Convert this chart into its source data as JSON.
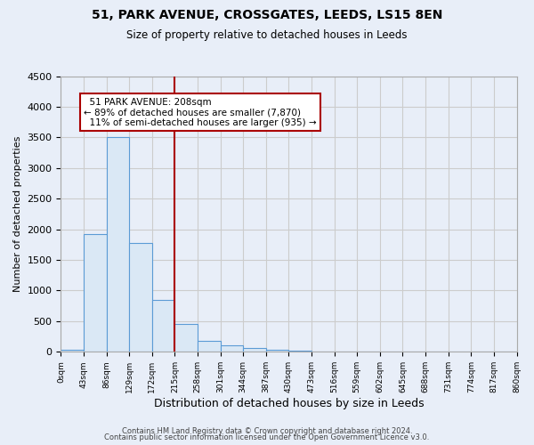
{
  "title": "51, PARK AVENUE, CROSSGATES, LEEDS, LS15 8EN",
  "subtitle": "Size of property relative to detached houses in Leeds",
  "xlabel": "Distribution of detached houses by size in Leeds",
  "ylabel": "Number of detached properties",
  "property_label": "51 PARK AVENUE: 208sqm",
  "pct_smaller": 89,
  "pct_smaller_count": 7870,
  "pct_larger": 11,
  "pct_larger_count": 935,
  "bin_edges": [
    0,
    43,
    86,
    129,
    172,
    215,
    258,
    301,
    344,
    387,
    430,
    473,
    516,
    559,
    602,
    645,
    688,
    731,
    774,
    817,
    860
  ],
  "bin_counts": [
    40,
    1920,
    3500,
    1780,
    850,
    460,
    175,
    110,
    60,
    40,
    15,
    10,
    0,
    0,
    0,
    0,
    0,
    0,
    0,
    0
  ],
  "bar_facecolor": "#dae8f5",
  "bar_edgecolor": "#5b9bd5",
  "redline_x": 215,
  "annotation_box_edgecolor": "#aa0000",
  "annotation_box_facecolor": "#ffffff",
  "redline_color": "#aa0000",
  "ylim": [
    0,
    4500
  ],
  "yticks": [
    0,
    500,
    1000,
    1500,
    2000,
    2500,
    3000,
    3500,
    4000,
    4500
  ],
  "footer1": "Contains HM Land Registry data © Crown copyright and database right 2024.",
  "footer2": "Contains public sector information licensed under the Open Government Licence v3.0.",
  "grid_color": "#cccccc",
  "background_color": "#e8eef8",
  "plot_bg_color": "#e8eef8"
}
